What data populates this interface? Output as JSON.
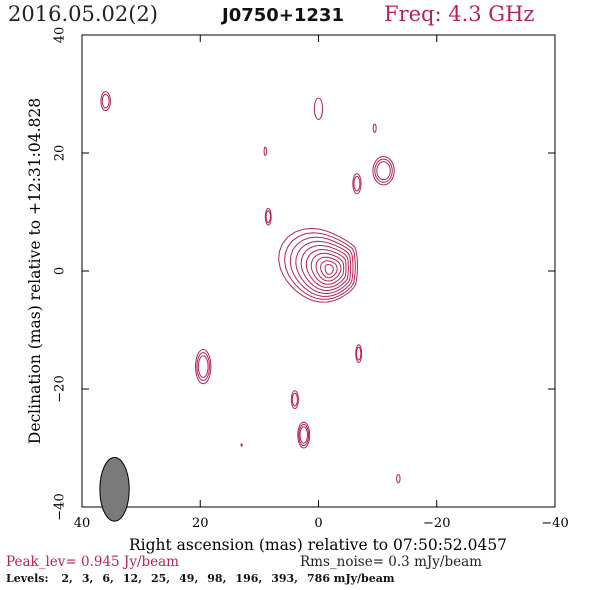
{
  "header": {
    "date": "2016.05.02(2)",
    "source": "J0750+1231",
    "freq": "Freq: 4.3 GHz"
  },
  "chart_data": {
    "type": "contour",
    "xlabel": "Right ascension (mas) relative to 07:50:52.0457",
    "ylabel": "Declination (mas) relative to +12:31:04.828",
    "xlim": [
      40,
      -40
    ],
    "ylim": [
      -40,
      40
    ],
    "xticks": [
      40,
      20,
      0,
      -20,
      -40
    ],
    "yticks": [
      -40,
      -20,
      0,
      20,
      40
    ],
    "xtick_labels": [
      "40",
      "20",
      "0",
      "−20",
      "−40"
    ],
    "ytick_labels": [
      "−40",
      "−20",
      "0",
      "20",
      "40"
    ],
    "contour_color": "#b5244f",
    "beam": {
      "x": 34.5,
      "y": -37,
      "major": 4.0,
      "minor": 1.6,
      "color": "#7a7a7a"
    },
    "core": {
      "x": -1.5,
      "y": 0.5,
      "levels": 10,
      "peak_x": -1.8,
      "peak_y": 0.3
    },
    "components": [
      {
        "x": 36,
        "y": 28.8,
        "rx": 0.8,
        "ry": 1.6,
        "n": 2
      },
      {
        "x": 0,
        "y": 27.5,
        "rx": 0.7,
        "ry": 1.8,
        "n": 1
      },
      {
        "x": -9.5,
        "y": 24.2,
        "rx": 0.25,
        "ry": 0.7,
        "n": 1
      },
      {
        "x": 9,
        "y": 20.3,
        "rx": 0.2,
        "ry": 0.7,
        "n": 1
      },
      {
        "x": -11,
        "y": 17,
        "rx": 1.8,
        "ry": 2.4,
        "n": 3
      },
      {
        "x": -6.5,
        "y": 14.8,
        "rx": 0.7,
        "ry": 1.7,
        "n": 2
      },
      {
        "x": 8.5,
        "y": 9.2,
        "rx": 0.5,
        "ry": 1.4,
        "n": 2
      },
      {
        "x": 19.5,
        "y": -16.2,
        "rx": 1.3,
        "ry": 2.9,
        "n": 3
      },
      {
        "x": -6.8,
        "y": -14,
        "rx": 0.5,
        "ry": 1.5,
        "n": 2
      },
      {
        "x": 4,
        "y": -21.8,
        "rx": 0.6,
        "ry": 1.5,
        "n": 2
      },
      {
        "x": 2.5,
        "y": -27.8,
        "rx": 1.0,
        "ry": 2.2,
        "n": 3
      },
      {
        "x": 13,
        "y": -29.5,
        "rx": 0.1,
        "ry": 0.2,
        "n": 1
      },
      {
        "x": -13.5,
        "y": -35.2,
        "rx": 0.3,
        "ry": 0.7,
        "n": 1
      }
    ]
  },
  "footer": {
    "peak": "Peak_lev=  0.945 Jy/beam",
    "rms": "Rms_noise=  0.3 mJy/beam",
    "levels_prefix": "Levels:",
    "levels": [
      "2,",
      "3,",
      "6,",
      "12,",
      "25,",
      "49,",
      "98,",
      "196,",
      "393,",
      "786 mJy/beam"
    ]
  }
}
